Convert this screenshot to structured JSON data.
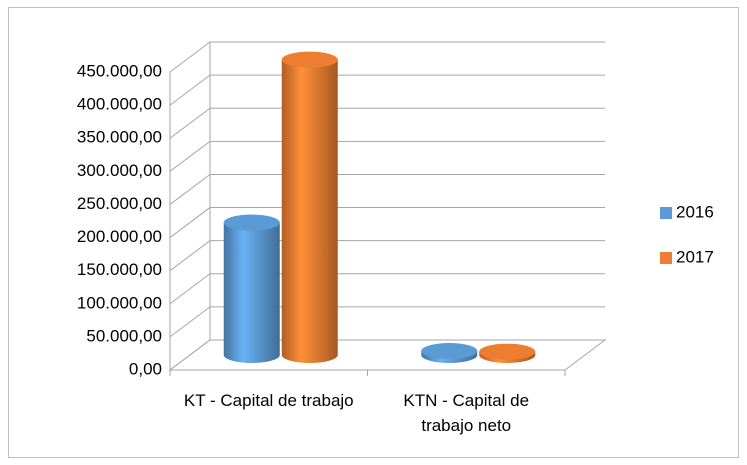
{
  "chart_data": {
    "type": "bar3d",
    "categories": [
      "KT - Capital de trabajo",
      "KTN - Capital de trabajo neto"
    ],
    "series": [
      {
        "name": "2016",
        "color": "#5b9bd5",
        "values": [
          200000,
          6000
        ]
      },
      {
        "name": "2017",
        "color": "#ed7d31",
        "values": [
          446000,
          5000
        ]
      }
    ],
    "ylim": [
      0,
      450000
    ],
    "yticks": [
      {
        "value": 0,
        "label": "0,00"
      },
      {
        "value": 50000,
        "label": "50.000,00"
      },
      {
        "value": 100000,
        "label": "100.000,00"
      },
      {
        "value": 150000,
        "label": "150.000,00"
      },
      {
        "value": 200000,
        "label": "200.000,00"
      },
      {
        "value": 250000,
        "label": "250.000,00"
      },
      {
        "value": 300000,
        "label": "300.000,00"
      },
      {
        "value": 350000,
        "label": "350.000,00"
      },
      {
        "value": 400000,
        "label": "400.000,00"
      },
      {
        "value": 450000,
        "label": "450.000,00"
      }
    ],
    "grid": true,
    "legend": "right"
  }
}
